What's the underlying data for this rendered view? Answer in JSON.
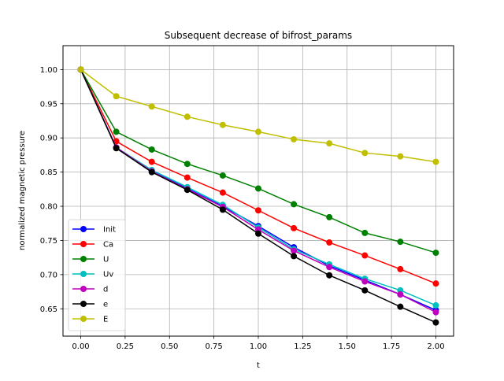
{
  "chart_data": {
    "type": "line",
    "title": "Subsequent decrease of bifrost_params",
    "xlabel": "t",
    "ylabel": "normalized magnetic pressure",
    "xlim": [
      -0.1,
      2.1
    ],
    "ylim": [
      0.61,
      1.035
    ],
    "xticks": [
      0.0,
      0.25,
      0.5,
      0.75,
      1.0,
      1.25,
      1.5,
      1.75,
      2.0
    ],
    "xtick_labels": [
      "0.00",
      "0.25",
      "0.50",
      "0.75",
      "1.00",
      "1.25",
      "1.50",
      "1.75",
      "2.00"
    ],
    "yticks": [
      0.65,
      0.7,
      0.75,
      0.8,
      0.85,
      0.9,
      0.95,
      1.0
    ],
    "ytick_labels": [
      "0.65",
      "0.70",
      "0.75",
      "0.80",
      "0.85",
      "0.90",
      "0.95",
      "1.00"
    ],
    "grid": true,
    "legend_position": "lower-left",
    "x": [
      0.0,
      0.2,
      0.4,
      0.6,
      0.8,
      1.0,
      1.2,
      1.4,
      1.6,
      1.8,
      2.0
    ],
    "series": [
      {
        "name": "Init",
        "color": "#0000ff",
        "values": [
          1.0,
          0.886,
          0.852,
          0.826,
          0.8,
          0.771,
          0.74,
          0.713,
          0.692,
          0.671,
          0.648
        ]
      },
      {
        "name": "Ca",
        "color": "#ff0000",
        "values": [
          1.0,
          0.895,
          0.865,
          0.842,
          0.82,
          0.794,
          0.768,
          0.747,
          0.728,
          0.708,
          0.687
        ]
      },
      {
        "name": "U",
        "color": "#008000",
        "values": [
          1.0,
          0.909,
          0.883,
          0.862,
          0.845,
          0.826,
          0.803,
          0.784,
          0.761,
          0.748,
          0.732
        ]
      },
      {
        "name": "Uv",
        "color": "#00bfbf",
        "values": [
          1.0,
          0.886,
          0.853,
          0.828,
          0.802,
          0.769,
          0.737,
          0.715,
          0.694,
          0.677,
          0.655
        ]
      },
      {
        "name": "d",
        "color": "#bf00bf",
        "values": [
          1.0,
          0.886,
          0.851,
          0.825,
          0.799,
          0.766,
          0.735,
          0.711,
          0.69,
          0.671,
          0.645
        ]
      },
      {
        "name": "e",
        "color": "#000000",
        "values": [
          1.0,
          0.885,
          0.85,
          0.824,
          0.795,
          0.76,
          0.727,
          0.699,
          0.677,
          0.653,
          0.63
        ]
      },
      {
        "name": "E",
        "color": "#bfbf00",
        "values": [
          1.0,
          0.961,
          0.946,
          0.931,
          0.919,
          0.909,
          0.898,
          0.892,
          0.878,
          0.873,
          0.865
        ]
      }
    ]
  }
}
